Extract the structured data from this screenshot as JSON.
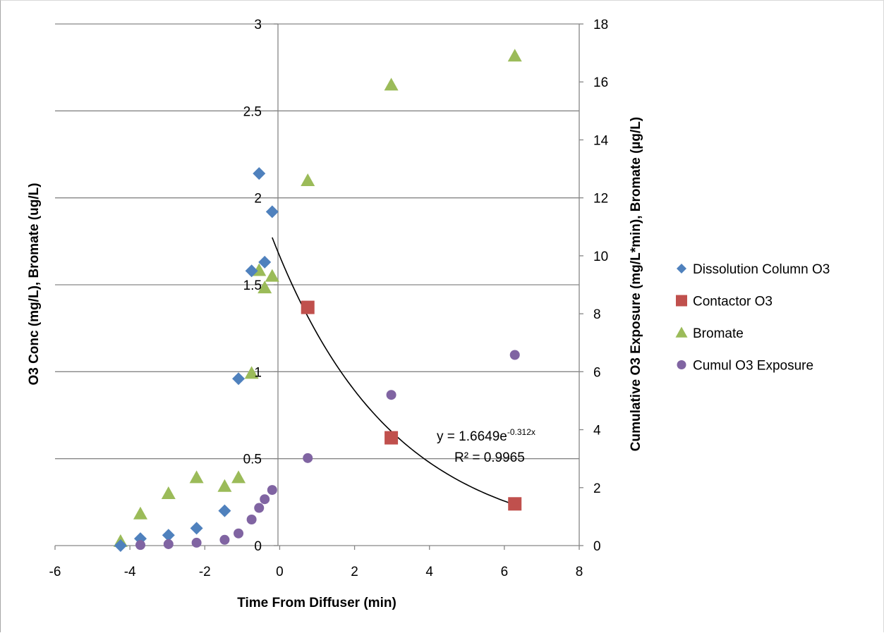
{
  "chart_data": {
    "type": "scatter",
    "xlabel": "Time From Diffuser (min)",
    "ylabel": "O3 Conc (mg/L), Bromate (ug/L)",
    "y2label": "Cumulative O3 Exposure (mg/L*min), Bromate (µg/L)",
    "xlim": [
      -6,
      8
    ],
    "ylim": [
      0,
      3
    ],
    "y2lim": [
      0,
      18
    ],
    "x_ticks": [
      "-6",
      "-4",
      "-2",
      "0",
      "2",
      "4",
      "6",
      "8"
    ],
    "y_ticks": [
      "0",
      "0.5",
      "1",
      "1.5",
      "2",
      "2.5",
      "3"
    ],
    "y2_ticks": [
      "0",
      "2",
      "4",
      "6",
      "8",
      "10",
      "12",
      "14",
      "16",
      "18"
    ],
    "grid": "horizontal",
    "legend_position": "right",
    "series": [
      {
        "name": "Dissolution Column O3",
        "axis": "left",
        "marker": "diamond",
        "color": "#4f81bd",
        "x": [
          -4.25,
          -3.72,
          -2.97,
          -2.22,
          -1.47,
          -1.1,
          -0.75,
          -0.55,
          -0.4,
          -0.2
        ],
        "y": [
          0.0,
          0.04,
          0.06,
          0.1,
          0.2,
          0.96,
          1.58,
          2.14,
          1.63,
          1.92
        ]
      },
      {
        "name": "Contactor O3",
        "axis": "left",
        "marker": "square",
        "color": "#c0504d",
        "x": [
          0.75,
          2.98,
          6.28
        ],
        "y": [
          1.37,
          0.62,
          0.24
        ]
      },
      {
        "name": "Bromate",
        "axis": "right",
        "marker": "triangle",
        "color": "#9bbb59",
        "x": [
          -4.25,
          -3.72,
          -2.97,
          -2.22,
          -1.47,
          -1.1,
          -0.75,
          -0.55,
          -0.4,
          -0.2,
          0.75,
          2.98,
          6.28
        ],
        "y": [
          0.15,
          1.1,
          1.8,
          2.35,
          2.05,
          2.35,
          5.95,
          9.5,
          8.9,
          9.3,
          12.6,
          15.9,
          16.9
        ]
      },
      {
        "name": "Cumul O3 Exposure",
        "axis": "right",
        "marker": "circle",
        "color": "#8064a2",
        "x": [
          -3.72,
          -2.97,
          -2.22,
          -1.47,
          -1.1,
          -0.75,
          -0.55,
          -0.4,
          -0.2,
          0.75,
          2.98,
          6.28
        ],
        "y": [
          0.02,
          0.05,
          0.1,
          0.2,
          0.42,
          0.9,
          1.3,
          1.6,
          1.92,
          3.02,
          5.2,
          6.58
        ]
      }
    ],
    "trendline": {
      "series": "Contactor O3",
      "type": "exponential",
      "a": 1.6649,
      "b": -0.312,
      "x_range": [
        -0.2,
        6.28
      ],
      "equation_prefix": "y = 1.6649e",
      "equation_exponent": "-0.312x",
      "r_squared_label": "R² = 0.9965"
    }
  }
}
